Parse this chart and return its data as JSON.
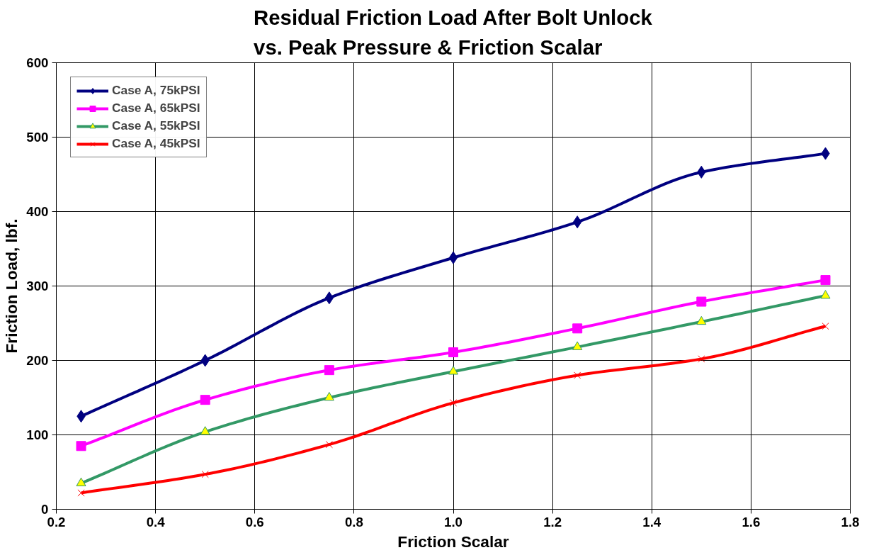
{
  "chart_data": {
    "type": "line",
    "title": "Residual Friction Load After Bolt Unlock\nvs. Peak Pressure & Friction Scalar",
    "xlabel": "Friction Scalar",
    "ylabel": "Friction Load, lbf.",
    "x": [
      0.25,
      0.5,
      0.75,
      1.0,
      1.25,
      1.5,
      1.75
    ],
    "series": [
      {
        "name": "Case A, 75kPSI",
        "color": "#000080",
        "marker": "diamond",
        "values": [
          125,
          200,
          284,
          338,
          386,
          453,
          478
        ]
      },
      {
        "name": "Case A, 65kPSI",
        "color": "#ff00ff",
        "marker": "square",
        "values": [
          85,
          147,
          187,
          211,
          243,
          279,
          308
        ]
      },
      {
        "name": "Case A, 55kPSI",
        "color": "#339966",
        "marker": "triangle",
        "values": [
          35,
          104,
          150,
          185,
          218,
          252,
          287
        ]
      },
      {
        "name": "Case A, 45kPSI",
        "color": "#ff0000",
        "marker": "cross",
        "values": [
          22,
          47,
          87,
          143,
          180,
          202,
          246
        ]
      }
    ],
    "xlim": [
      0.2,
      1.8
    ],
    "xticks": [
      {
        "value": 0.2,
        "label": "0.2"
      },
      {
        "value": 0.4,
        "label": "0.4"
      },
      {
        "value": 0.6,
        "label": "0.6"
      },
      {
        "value": 0.8,
        "label": "0.8"
      },
      {
        "value": 1.0,
        "label": "1.0"
      },
      {
        "value": 1.2,
        "label": "1.2"
      },
      {
        "value": 1.4,
        "label": "1.4"
      },
      {
        "value": 1.6,
        "label": "1.6"
      },
      {
        "value": 1.8,
        "label": "1.8"
      }
    ],
    "ylim": [
      0,
      600
    ],
    "yticks": [
      0,
      100,
      200,
      300,
      400,
      500,
      600
    ],
    "grid": true,
    "legend": "top left"
  }
}
